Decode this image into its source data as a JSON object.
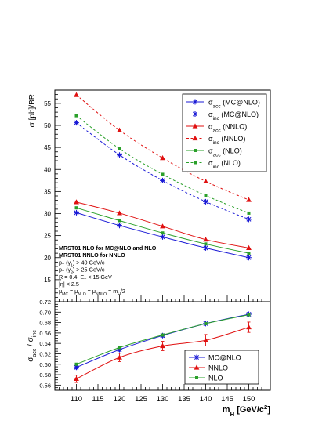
{
  "chart_data": [
    {
      "type": "line",
      "ylabel": "σ [pb]/BR",
      "xlim": [
        105,
        155
      ],
      "ylim": [
        10,
        58
      ],
      "y_ticks": [
        15,
        20,
        25,
        30,
        35,
        40,
        45,
        50,
        55
      ],
      "x": [
        110,
        120,
        130,
        140,
        150
      ],
      "colors": {
        "mcnlo": "#1a1ad6",
        "nnlo": "#e01010",
        "nlo": "#2aa02a"
      },
      "legend_position": "top-right",
      "series": [
        {
          "key": "mc_acc",
          "name": "(MC@NLO)",
          "sym": "acc",
          "color": "mcnlo",
          "marker": "star",
          "dashed": false,
          "values": [
            30.2,
            27.3,
            24.7,
            22.2,
            20.0
          ]
        },
        {
          "key": "mc_inc",
          "name": "(MC@NLO)",
          "sym": "inc",
          "color": "mcnlo",
          "marker": "star",
          "dashed": true,
          "values": [
            50.6,
            43.3,
            37.5,
            32.7,
            28.7
          ]
        },
        {
          "key": "nnlo_acc",
          "name": "(NNLO)",
          "sym": "acc",
          "color": "nnlo",
          "marker": "triangle",
          "dashed": false,
          "values": [
            32.6,
            30.1,
            27.1,
            24.1,
            22.2
          ]
        },
        {
          "key": "nnlo_inc",
          "name": "(NNLO)",
          "sym": "inc",
          "color": "nnlo",
          "marker": "triangle",
          "dashed": true,
          "values": [
            56.9,
            48.9,
            42.6,
            37.3,
            33.1
          ]
        },
        {
          "key": "nlo_acc",
          "name": "(NLO)",
          "sym": "acc",
          "color": "nlo",
          "marker": "square",
          "dashed": false,
          "values": [
            31.3,
            28.4,
            25.6,
            23.1,
            21.0
          ]
        },
        {
          "key": "nlo_inc",
          "name": "(NLO)",
          "sym": "inc",
          "color": "nlo",
          "marker": "square",
          "dashed": true,
          "values": [
            52.2,
            44.7,
            38.9,
            34.1,
            30.1
          ]
        }
      ],
      "annotations": [
        "MRST01 NLO for MC@NLO and NLO",
        "MRST01 NNLO for NNLO",
        "p_T (γ_1) > 40 GeV/c",
        "p_T (γ_2) > 25 GeV/c",
        "R = 0.4, E_T < 15 GeV",
        "|η| < 2.5",
        "μ_MC = μ_NLO = μ_NNLO = m_H/2"
      ]
    },
    {
      "type": "line",
      "xlabel": "m_H [GeV/c^2]",
      "ylabel": "σ_acc / σ_inc",
      "xlim": [
        105,
        155
      ],
      "ylim": [
        0.55,
        0.72
      ],
      "x_ticks": [
        110,
        115,
        120,
        125,
        130,
        135,
        140,
        145,
        150
      ],
      "y_ticks": [
        0.56,
        0.58,
        0.6,
        0.62,
        0.64,
        0.66,
        0.68,
        0.7,
        0.72
      ],
      "x": [
        110,
        120,
        130,
        140,
        150
      ],
      "legend_position": "bottom-right",
      "series": [
        {
          "key": "mc_ratio",
          "name": "MC@NLO",
          "color": "mcnlo",
          "marker": "star",
          "values": [
            0.594,
            0.628,
            0.655,
            0.678,
            0.696
          ],
          "errors": [
            0.003,
            0.003,
            0.003,
            0.002,
            0.002
          ]
        },
        {
          "key": "nnlo_ratio",
          "name": "NNLO",
          "color": "nnlo",
          "marker": "triangle",
          "values": [
            0.572,
            0.613,
            0.635,
            0.646,
            0.671
          ],
          "errors": [
            0.007,
            0.008,
            0.009,
            0.011,
            0.01
          ]
        },
        {
          "key": "nlo_ratio",
          "name": "NLO",
          "color": "nlo",
          "marker": "square",
          "values": [
            0.6,
            0.632,
            0.656,
            0.678,
            0.695
          ],
          "errors": [
            0.002,
            0.002,
            0.002,
            0.002,
            0.002
          ]
        }
      ]
    }
  ]
}
